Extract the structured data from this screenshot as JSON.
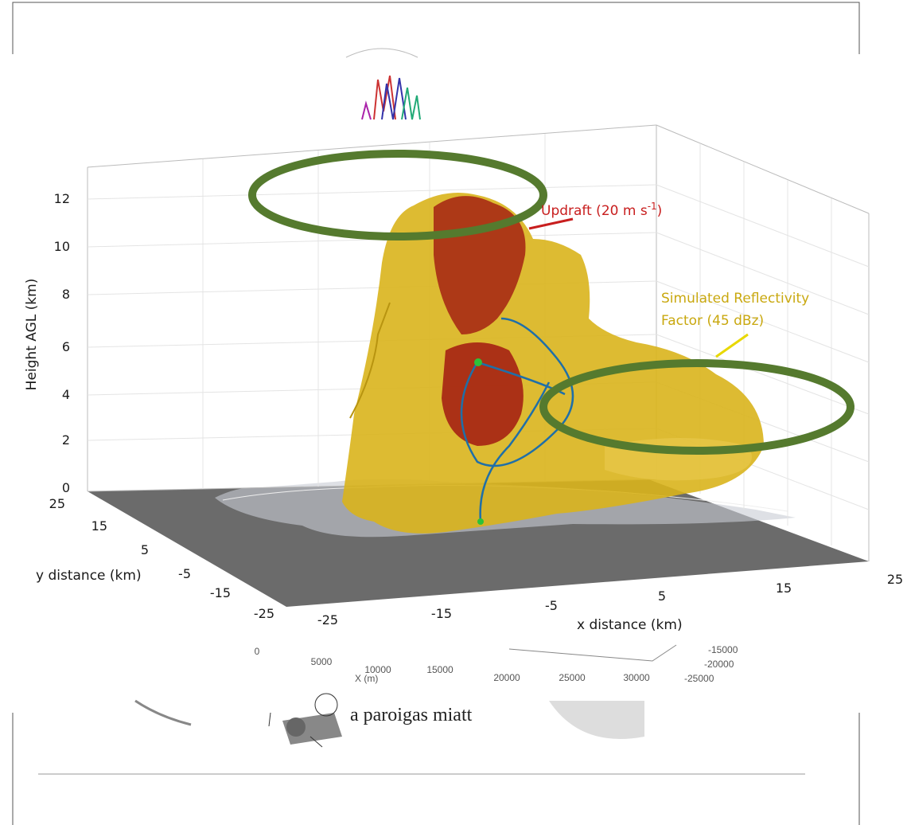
{
  "figure": {
    "z_axis": {
      "label": "Height AGL (km)",
      "ticks": [
        0,
        2,
        4,
        6,
        8,
        10,
        12
      ]
    },
    "y_axis": {
      "label": "y distance (km)",
      "ticks": [
        25,
        15,
        5,
        -5,
        -15,
        -25
      ]
    },
    "x_axis": {
      "label": "x distance (km)",
      "ticks": [
        -25,
        -15,
        -5,
        5,
        15,
        25
      ]
    },
    "updraft": {
      "text": "Updraft (20 m s",
      "superscript": "-1",
      "close": ")"
    },
    "reflectivity": {
      "lines": [
        "Simulated Reflectivity",
        "Factor (45 dBz)"
      ]
    }
  },
  "background_fragment": {
    "x_label": "X (m)",
    "x_ticks": [
      "0",
      "5000",
      "10000",
      "15000",
      "20000",
      "25000",
      "30000"
    ],
    "side_ticks": [
      "-15000",
      "-20000",
      "-25000"
    ],
    "caption": "a paroigas miatt"
  }
}
